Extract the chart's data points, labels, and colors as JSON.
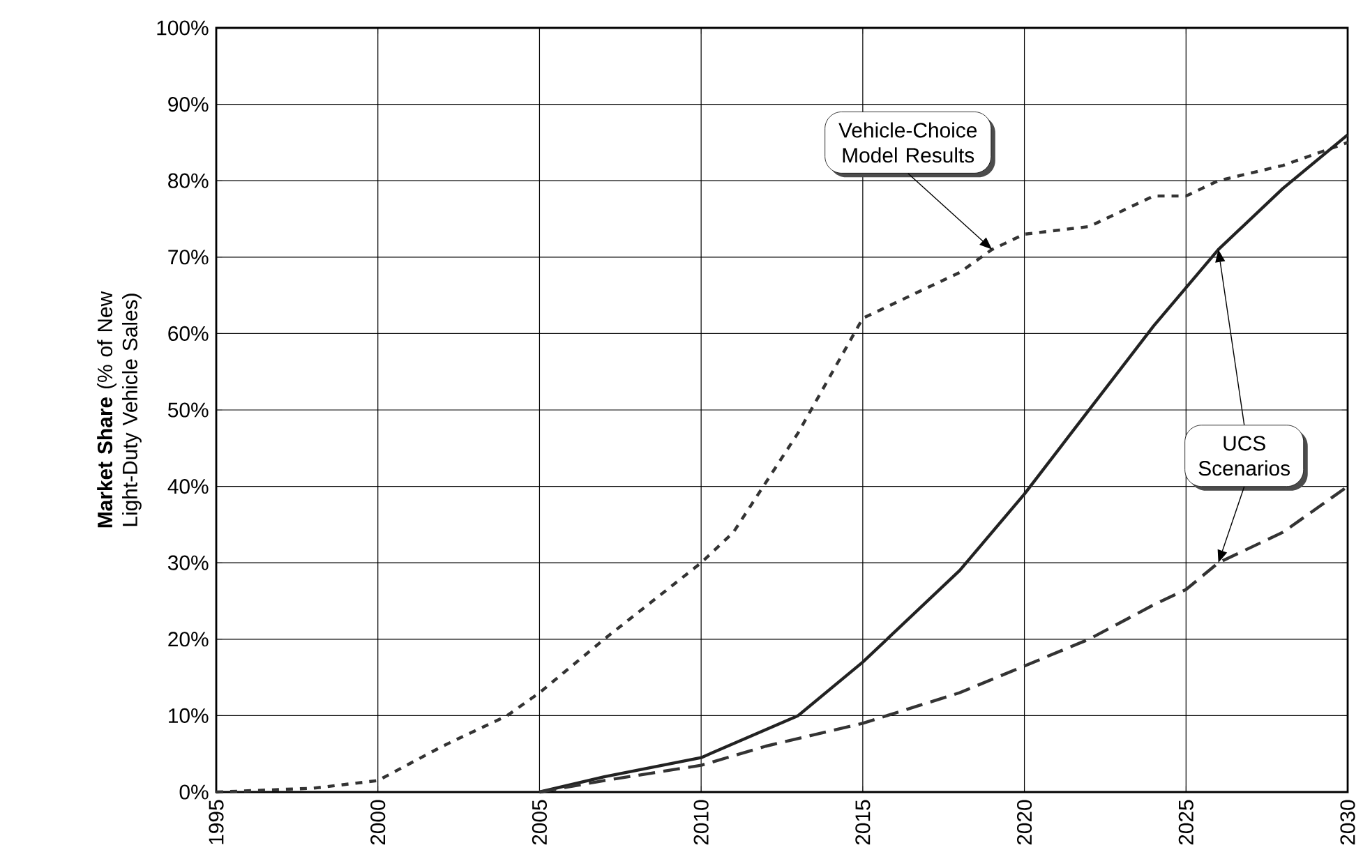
{
  "chart_data": {
    "type": "line",
    "ylabel": "**Market Share** (% of New Light-Duty Vehicle Sales)",
    "xlim": [
      1995,
      2030
    ],
    "ylim": [
      0,
      100
    ],
    "xticks": [
      1995,
      2000,
      2005,
      2010,
      2015,
      2020,
      2025,
      2030
    ],
    "yticks": [
      {
        "value": 0,
        "label": "0%"
      },
      {
        "value": 10,
        "label": "10%"
      },
      {
        "value": 20,
        "label": "20%"
      },
      {
        "value": 30,
        "label": "30%"
      },
      {
        "value": 40,
        "label": "40%"
      },
      {
        "value": 50,
        "label": "50%"
      },
      {
        "value": 60,
        "label": "60%"
      },
      {
        "value": 70,
        "label": "70%"
      },
      {
        "value": 80,
        "label": "80%"
      },
      {
        "value": 90,
        "label": "90%"
      },
      {
        "value": 100,
        "label": "100%"
      }
    ],
    "grid": true,
    "marker": "none",
    "series": [
      {
        "color": "#333333",
        "line_style": "dotted",
        "x": [
          1995,
          1998,
          2000,
          2002,
          2004,
          2005,
          2007,
          2010,
          2011,
          2013,
          2015,
          2016,
          2018,
          2019,
          2020,
          2022,
          2024,
          2025,
          2026,
          2028,
          2030
        ],
        "values": [
          0,
          0.5,
          1.5,
          6,
          10,
          13,
          20,
          30,
          34,
          47,
          62,
          64,
          68,
          71,
          73,
          74,
          78,
          78,
          80,
          82,
          85
        ]
      },
      {
        "color": "#222222",
        "line_style": "solid",
        "x": [
          2005,
          2007,
          2010,
          2013,
          2015,
          2018,
          2020,
          2022,
          2024,
          2026,
          2028,
          2030
        ],
        "values": [
          0,
          2,
          4.5,
          10,
          17,
          29,
          39,
          50,
          61,
          71,
          79,
          86
        ]
      },
      {
        "color": "#333333",
        "line_style": "dashed",
        "x": [
          2005,
          2007,
          2010,
          2012,
          2015,
          2018,
          2020,
          2022,
          2024,
          2025,
          2026,
          2028,
          2030
        ],
        "values": [
          0,
          1.5,
          3.5,
          6,
          9,
          13,
          16.5,
          20,
          24.5,
          26.5,
          30,
          34,
          40
        ]
      }
    ],
    "annotations": [
      {
        "text": "Vehicle-Choice Model Results",
        "x": 2019,
        "y": 71
      },
      {
        "text": "UCS Scenarios",
        "x": 2026,
        "y": 71
      }
    ]
  }
}
